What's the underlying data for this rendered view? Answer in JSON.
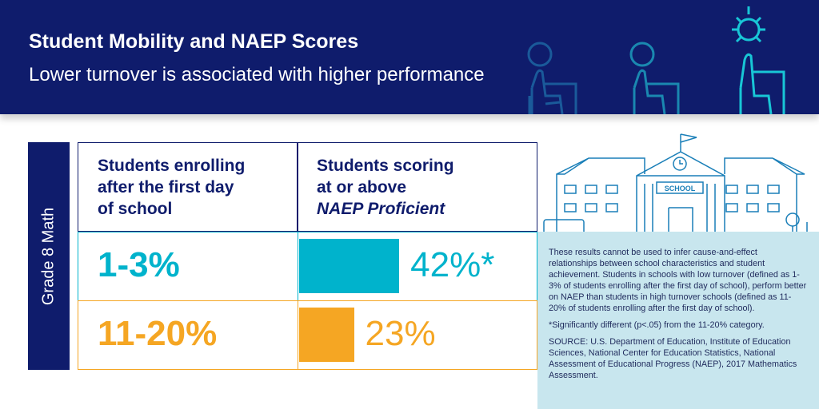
{
  "header": {
    "title": "Student Mobility and NAEP Scores",
    "subtitle": "Lower turnover is associated with higher performance"
  },
  "side_label": "Grade 8 Math",
  "table": {
    "col1_header": [
      "Students enrolling",
      "after the first day",
      "of school"
    ],
    "col2_header": [
      "Students scoring",
      "at or above"
    ],
    "col2_header_italic": "NAEP Proficient"
  },
  "chart_data": {
    "type": "bar",
    "categories": [
      "1-3%",
      "11-20%"
    ],
    "values": [
      42,
      23
    ],
    "value_labels": [
      "42%*",
      "23%"
    ],
    "colors": [
      "#00b3cc",
      "#f5a623"
    ],
    "xlabel": "Students enrolling after the first day of school",
    "ylabel": "Students scoring at or above NAEP Proficient",
    "ylim": [
      0,
      100
    ]
  },
  "school_sign": "SCHOOL",
  "notes": {
    "body": "These results cannot be used to infer cause-and-effect relationships between school characteristics and student achievement. Students in schools with low turnover (defined as 1-3% of students enrolling after the first day of school), perform better on NAEP than students in high turnover schools (defined as 11-20% of students enrolling after the first day of school).",
    "footnote": "*Significantly different (p<.05) from the 11-20% category.",
    "source": "SOURCE: U.S. Department of Education, Institute of Education Sciences, National Center for Education Statistics, National Assessment of Educational Progress (NAEP), 2017 Mathematics Assessment."
  },
  "colors": {
    "navy": "#0f1c6c",
    "teal": "#00b3cc",
    "orange": "#f5a623",
    "panel": "#c8e6ee"
  }
}
